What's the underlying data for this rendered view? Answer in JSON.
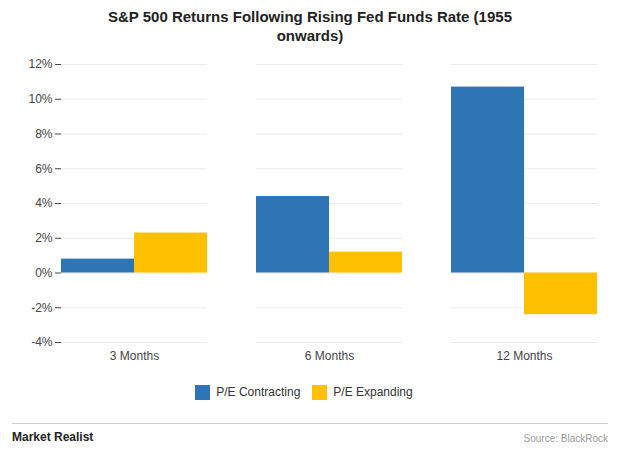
{
  "chart_data": {
    "type": "bar",
    "title": "S&P 500 Returns Following Rising Fed Funds Rate (1955\nonwards)",
    "categories": [
      "3 Months",
      "6 Months",
      "12 Months"
    ],
    "series": [
      {
        "name": "P/E Contracting",
        "color": "#2E75B6",
        "values": [
          0.8,
          4.4,
          10.7
        ]
      },
      {
        "name": "P/E Expanding",
        "color": "#FFC000",
        "values": [
          2.3,
          1.2,
          -2.4
        ]
      }
    ],
    "ylim": [
      -4,
      12
    ],
    "yticks": [
      {
        "value": -4,
        "label": "-4%"
      },
      {
        "value": -2,
        "label": "-2%"
      },
      {
        "value": 0,
        "label": "0%"
      },
      {
        "value": 2,
        "label": "2%"
      },
      {
        "value": 4,
        "label": "4%"
      },
      {
        "value": 6,
        "label": "6%"
      },
      {
        "value": 8,
        "label": "8%"
      },
      {
        "value": 10,
        "label": "10%"
      },
      {
        "value": 12,
        "label": "12%"
      }
    ],
    "grid": true,
    "legend": "bottom",
    "annotations": [
      "Market Realist",
      "Source: BlackRock"
    ]
  }
}
